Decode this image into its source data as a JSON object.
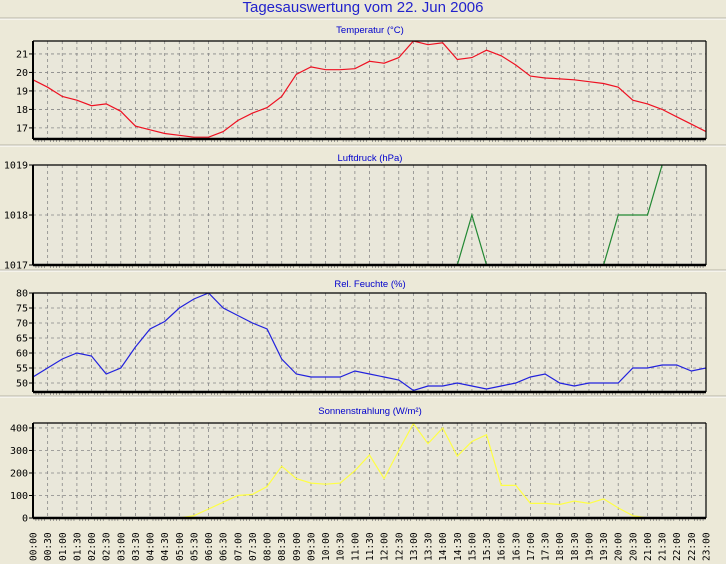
{
  "title": "Tagesauswertung vom 22. Jun 2006",
  "chart_data": [
    {
      "type": "line",
      "title": "Temperatur (°C)",
      "color": "#ee1122",
      "ylim": [
        16.4,
        21.7
      ],
      "yticks": [
        17,
        18,
        19,
        20,
        21
      ],
      "values": [
        19.6,
        19.2,
        18.7,
        18.5,
        18.2,
        18.3,
        17.9,
        17.1,
        16.9,
        16.7,
        16.6,
        16.5,
        16.5,
        16.8,
        17.4,
        17.8,
        18.1,
        18.7,
        19.9,
        20.3,
        20.15,
        20.15,
        20.2,
        20.6,
        20.5,
        20.8,
        21.7,
        21.5,
        21.6,
        20.7,
        20.8,
        21.2,
        20.9,
        20.4,
        19.8,
        19.7,
        19.65,
        19.6,
        19.5,
        19.4,
        19.2,
        18.5,
        18.3,
        18.0,
        17.6,
        17.2,
        16.8
      ]
    },
    {
      "type": "line",
      "title": "Luftdruck (hPa)",
      "color": "#228833",
      "ylim": [
        1017,
        1019
      ],
      "yticks": [
        1017,
        1018,
        1019
      ],
      "values": [
        1017,
        1017,
        1017,
        1017,
        1017,
        1017,
        1017,
        1017,
        1017,
        1017,
        1017,
        1017,
        1017,
        1017,
        1017,
        1017,
        1017,
        1017,
        1017,
        1017,
        1017,
        1017,
        1017,
        1017,
        1017,
        1017,
        1017,
        1017,
        1017,
        1017,
        1018,
        1017,
        1017,
        1017,
        1017,
        1017,
        1017,
        1017,
        1017,
        1017,
        1018,
        1018,
        1018,
        1019,
        null,
        null,
        null
      ]
    },
    {
      "type": "line",
      "title": "Rel. Feuchte (%)",
      "color": "#2222dd",
      "ylim": [
        47,
        80
      ],
      "yticks": [
        50,
        55,
        60,
        65,
        70,
        75,
        80
      ],
      "values": [
        52,
        55,
        58,
        60,
        59,
        53,
        55,
        62,
        68,
        70.5,
        75,
        78,
        80,
        75,
        72.5,
        70,
        68,
        58,
        53,
        52,
        52,
        52,
        54,
        53,
        52,
        51,
        47.5,
        49,
        49,
        50,
        49,
        48,
        49,
        50,
        52,
        53,
        50,
        49,
        50,
        50,
        50,
        55,
        55,
        56,
        56,
        54,
        55
      ]
    },
    {
      "type": "line",
      "title": "Sonnenstrahlung (W/m²)",
      "color": "#ffff44",
      "ylim": [
        0,
        422
      ],
      "yticks": [
        0,
        100,
        200,
        300,
        400
      ],
      "values": [
        0,
        0,
        0,
        0,
        0,
        0,
        0,
        0,
        0,
        0,
        0,
        10,
        40,
        70,
        100,
        105,
        140,
        230,
        175,
        155,
        150,
        155,
        210,
        280,
        175,
        300,
        420,
        330,
        400,
        275,
        340,
        370,
        145,
        145,
        65,
        65,
        60,
        75,
        65,
        85,
        45,
        10,
        0,
        null,
        null,
        null,
        null
      ]
    }
  ],
  "x_labels": [
    "00:00",
    "00:30",
    "01:00",
    "01:30",
    "02:00",
    "02:30",
    "03:00",
    "03:30",
    "04:00",
    "04:30",
    "05:00",
    "05:30",
    "06:00",
    "06:30",
    "07:00",
    "07:30",
    "08:00",
    "08:30",
    "09:00",
    "09:30",
    "10:00",
    "10:30",
    "11:00",
    "11:30",
    "12:00",
    "12:30",
    "13:00",
    "13:30",
    "14:00",
    "14:30",
    "15:00",
    "15:30",
    "16:00",
    "16:30",
    "17:00",
    "17:30",
    "18:00",
    "18:30",
    "19:00",
    "19:30",
    "20:00",
    "20:30",
    "21:00",
    "21:30",
    "22:00",
    "22:30",
    "23:00"
  ]
}
